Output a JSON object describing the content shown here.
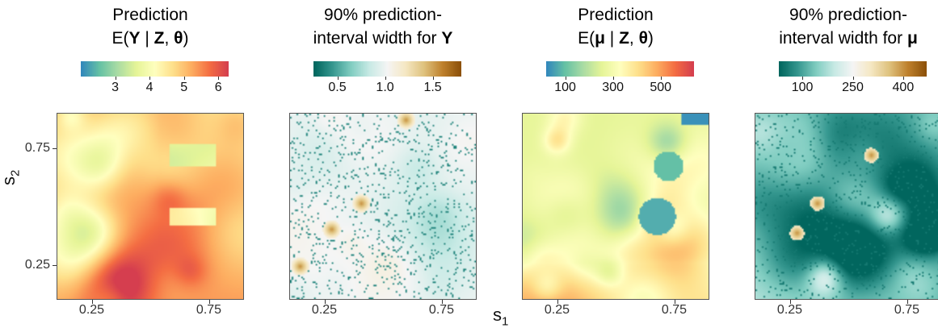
{
  "chart_data": [
    {
      "type": "heatmap",
      "title_line1": "Prediction",
      "title_line2": [
        "E(",
        "Y",
        " | ",
        "Z",
        ", ",
        "θ",
        ")"
      ],
      "colorbar_ticks": [
        "3",
        "4",
        "5",
        "6"
      ],
      "colorbar_tick_values": [
        3,
        4,
        5,
        6
      ],
      "colorbar_range": [
        2.0,
        6.3
      ],
      "palette": "spectral",
      "pattern": "mostly-high-with-low-patches-right"
    },
    {
      "type": "heatmap",
      "title_line1": "90% prediction-",
      "title_line2": [
        "interval width for ",
        "Y"
      ],
      "colorbar_ticks": [
        "0.5",
        "1.0",
        "1.5"
      ],
      "colorbar_tick_values": [
        0.5,
        1.0,
        1.5
      ],
      "colorbar_range": [
        0.25,
        1.8
      ],
      "palette": "brbg",
      "pattern": "speckled-near-center-with-brown-hotspots"
    },
    {
      "type": "heatmap",
      "title_line1": "Prediction",
      "title_line2": [
        "E(",
        "μ",
        " | ",
        "Z",
        ", ",
        "θ",
        ")"
      ],
      "colorbar_ticks": [
        "100",
        "300",
        "500"
      ],
      "colorbar_tick_values": [
        100,
        300,
        500
      ],
      "colorbar_range": [
        20,
        640
      ],
      "palette": "spectral",
      "pattern": "mostly-mid-with-low-blue-patches"
    },
    {
      "type": "heatmap",
      "title_line1": "90% prediction-",
      "title_line2": [
        "interval width for ",
        "μ"
      ],
      "colorbar_ticks": [
        "100",
        "250",
        "400"
      ],
      "colorbar_tick_values": [
        100,
        250,
        400
      ],
      "colorbar_range": [
        30,
        470
      ],
      "palette": "brbg",
      "pattern": "green-dominant-with-brown-spots"
    }
  ],
  "axes": {
    "x_ticks": [
      "0.25",
      "0.75"
    ],
    "x_tick_values": [
      0.25,
      0.75
    ],
    "y_ticks": [
      "0.75",
      "0.25"
    ],
    "y_tick_values": [
      0.75,
      0.25
    ],
    "x_range": [
      0.1,
      0.9
    ],
    "y_range": [
      0.1,
      0.9
    ],
    "xlabel": "s",
    "xlabel_sub": "1",
    "ylabel": "s",
    "ylabel_sub": "2"
  }
}
